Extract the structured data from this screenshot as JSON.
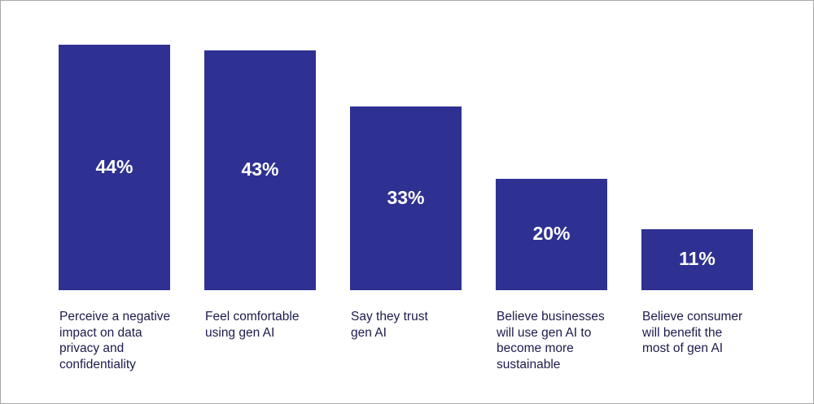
{
  "chart_data": {
    "type": "bar",
    "title": "",
    "xlabel": "",
    "ylabel": "",
    "ylim": [
      0,
      44
    ],
    "grid": false,
    "categories": [
      "Perceive a negative\nimpact on data\nprivacy and\nconfidentiality",
      "Feel comfortable\nusing gen AI",
      "Say they trust\ngen AI",
      "Believe businesses\nwill use gen AI to\nbecome more\nsustainable",
      "Believe consumer\nwill benefit the\nmost of gen AI"
    ],
    "values": [
      44,
      43,
      33,
      20,
      11
    ],
    "data_labels": [
      "44%",
      "43%",
      "33%",
      "20%",
      "11%"
    ],
    "colors": {
      "bar": "#2e3192",
      "label_text": "#1b1b4d",
      "value_text": "#ffffff"
    }
  }
}
